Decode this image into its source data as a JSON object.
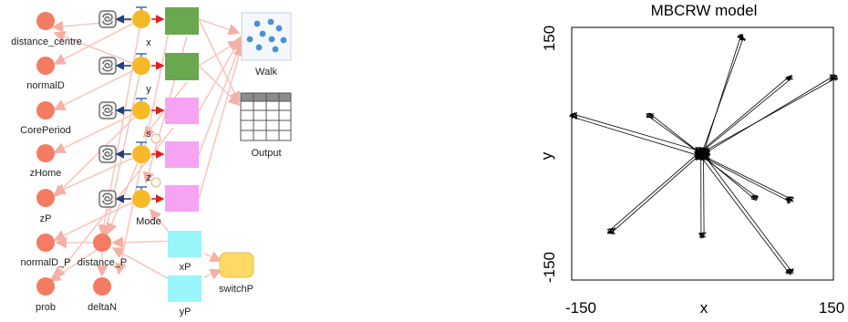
{
  "diagram": {
    "variables": [
      "distance_centre",
      "normalD",
      "CorePeriod",
      "zHome",
      "zP",
      "normalD_P",
      "prob",
      "distance_P",
      "deltaN"
    ],
    "state_labels": [
      "x",
      "y",
      "s",
      "z",
      "Mode"
    ],
    "flows": [
      "xP",
      "yP"
    ],
    "switch_label": "switchP",
    "walk_label": "Walk",
    "output_label": "Output",
    "colors": {
      "variable": "#f47c62",
      "state": "#f7b928",
      "stock_green": "#6aa84f",
      "stock_pink": "#f6a3f3",
      "flow_cyan": "#99f5f9",
      "switch": "#ffd966",
      "link": "#f8c8c0",
      "arrow_red": "#e02020",
      "arrow_blue": "#1f3f7f",
      "walk_dot": "#4a90d9"
    }
  },
  "plot": {
    "title": "MBCRW model",
    "xlabel": "x",
    "ylabel": "y",
    "x_ticks": [
      "-150",
      "150"
    ],
    "y_ticks": [
      "150",
      "-150"
    ]
  },
  "chart_data": {
    "type": "line",
    "title": "MBCRW model",
    "xlabel": "x",
    "ylabel": "y",
    "xlim": [
      -150,
      150
    ],
    "ylim": [
      -150,
      150
    ],
    "grid": false,
    "center": [
      0,
      0
    ],
    "arm_endpoints": [
      {
        "x": 45,
        "y": 138
      },
      {
        "x": 100,
        "y": 90
      },
      {
        "x": 150,
        "y": 90
      },
      {
        "x": -148,
        "y": 45
      },
      {
        "x": -60,
        "y": 45
      },
      {
        "x": -105,
        "y": -92
      },
      {
        "x": 0,
        "y": -97
      },
      {
        "x": 60,
        "y": -52
      },
      {
        "x": 100,
        "y": -55
      },
      {
        "x": 100,
        "y": -140
      }
    ]
  }
}
